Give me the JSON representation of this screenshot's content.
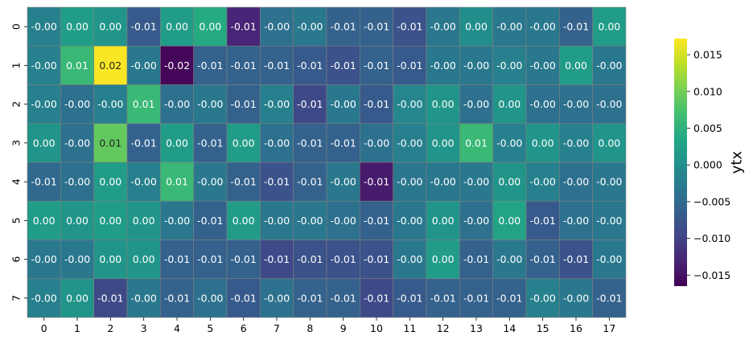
{
  "chart_data": {
    "type": "heatmap",
    "title": "",
    "xlabel": "",
    "ylabel": "",
    "x_categories": [
      "0",
      "1",
      "2",
      "3",
      "4",
      "5",
      "6",
      "7",
      "8",
      "9",
      "10",
      "11",
      "12",
      "13",
      "14",
      "15",
      "16",
      "17"
    ],
    "y_categories": [
      "0",
      "1",
      "2",
      "3",
      "4",
      "5",
      "6",
      "7"
    ],
    "values": [
      [
        -0.002,
        0.002,
        0.001,
        -0.007,
        0.002,
        0.004,
        -0.013,
        -0.004,
        -0.003,
        -0.006,
        -0.006,
        -0.008,
        -0.003,
        0.0,
        -0.003,
        -0.003,
        -0.006,
        0.002
      ],
      [
        -0.002,
        0.006,
        0.017,
        -0.003,
        -0.016,
        -0.006,
        -0.006,
        -0.006,
        -0.007,
        -0.008,
        -0.006,
        -0.007,
        -0.003,
        -0.003,
        -0.002,
        -0.003,
        0.002,
        -0.003
      ],
      [
        -0.002,
        -0.004,
        -0.002,
        0.006,
        -0.004,
        -0.003,
        -0.006,
        -0.002,
        -0.009,
        -0.003,
        -0.007,
        -0.001,
        0.001,
        -0.004,
        0.001,
        -0.004,
        -0.004,
        -0.004
      ],
      [
        0.001,
        -0.004,
        0.009,
        -0.006,
        0.002,
        -0.006,
        0.002,
        -0.004,
        -0.006,
        -0.006,
        -0.004,
        -0.002,
        0.001,
        0.006,
        -0.002,
        0.001,
        -0.002,
        0.001
      ],
      [
        -0.005,
        -0.004,
        0.002,
        -0.002,
        0.006,
        -0.003,
        -0.006,
        -0.008,
        -0.006,
        -0.003,
        -0.014,
        -0.003,
        -0.003,
        -0.003,
        0.001,
        -0.002,
        -0.004,
        -0.003
      ],
      [
        0.002,
        0.001,
        0.002,
        0.001,
        -0.003,
        -0.006,
        0.002,
        -0.003,
        -0.003,
        -0.004,
        -0.006,
        -0.003,
        0.001,
        -0.004,
        0.003,
        -0.007,
        -0.004,
        -0.003
      ],
      [
        -0.003,
        -0.003,
        0.001,
        0.001,
        -0.006,
        -0.006,
        -0.006,
        -0.009,
        -0.008,
        -0.008,
        -0.008,
        -0.003,
        0.002,
        -0.006,
        -0.003,
        -0.006,
        -0.008,
        -0.003
      ],
      [
        -0.002,
        0.001,
        -0.009,
        -0.003,
        -0.006,
        -0.004,
        -0.007,
        -0.004,
        -0.006,
        -0.006,
        -0.009,
        -0.007,
        -0.006,
        -0.006,
        -0.006,
        -0.002,
        -0.003,
        -0.006
      ]
    ],
    "value_format_decimals": 2,
    "colormap": "viridis",
    "vmin": -0.0165,
    "vmax": 0.0172,
    "colorbar": {
      "label": "ytx",
      "ticks": [
        0.015,
        0.01,
        0.005,
        0.0,
        -0.005,
        -0.01,
        -0.015
      ],
      "tick_labels": [
        "0.015",
        "0.010",
        "0.005",
        "0.000",
        "−0.005",
        "−0.010",
        "−0.015"
      ]
    },
    "cell_edge_color": "#808080"
  }
}
